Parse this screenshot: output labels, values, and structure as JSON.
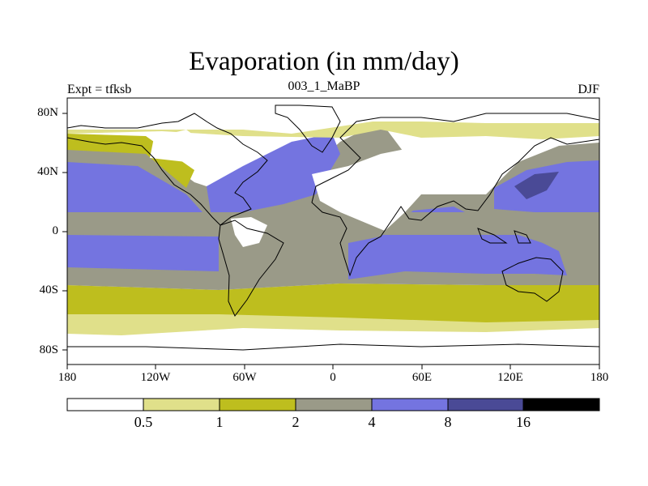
{
  "title": "Evaporation (in mm/day)",
  "subtitle_left": "Expt = tfksb",
  "subtitle_center": "003_1_MaBP",
  "subtitle_right": "DJF",
  "y_axis_ticks": [
    "80N",
    "40N",
    "0",
    "40S",
    "80S"
  ],
  "x_axis_ticks": [
    "180",
    "120W",
    "60W",
    "0",
    "60E",
    "120E",
    "180"
  ],
  "colorbar": {
    "colors": [
      "#ffffff",
      "#e0e08a",
      "#bebe1e",
      "#9a9a88",
      "#7474e0",
      "#4a4a96",
      "#000000"
    ],
    "labels": [
      "0.5",
      "1",
      "2",
      "4",
      "8",
      "16"
    ]
  },
  "map": {
    "projection": "cylindrical-equidistant",
    "lon_range": [
      -180,
      180
    ],
    "lat_range": [
      -90,
      90
    ],
    "fill_colors": {
      "lt_0_5": "#ffffff",
      "c0_5_1": "#e0e08a",
      "c1_2": "#bebe1e",
      "c2_4": "#9a9a88",
      "c4_8": "#7474e0",
      "c8_16": "#4a4a96"
    }
  }
}
